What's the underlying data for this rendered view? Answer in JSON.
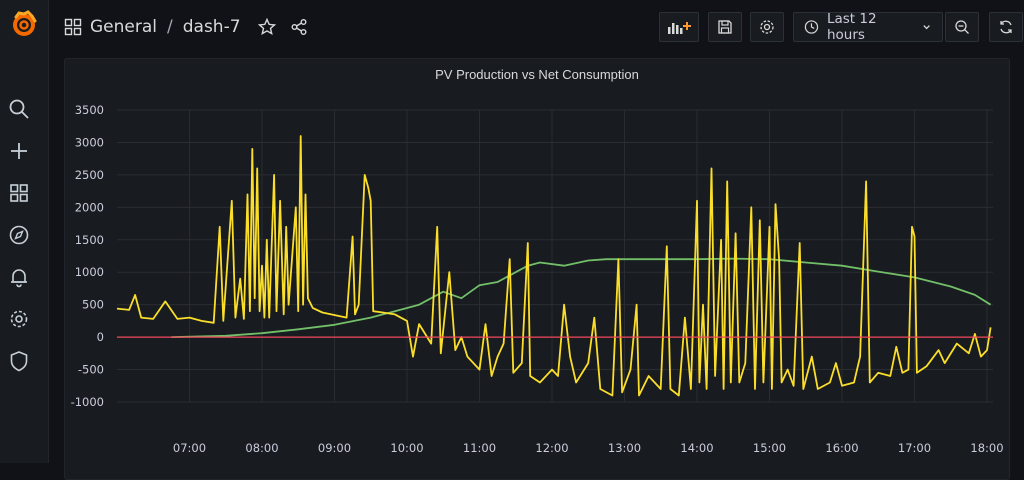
{
  "breadcrumb": {
    "folder": "General",
    "separator": "/",
    "dashboard": "dash-7"
  },
  "time_picker": {
    "label": "Last 12 hours"
  },
  "sidebar": {
    "icons": [
      "grafana-logo-icon",
      "search-icon",
      "plus-icon",
      "dashboards-icon",
      "explore-icon",
      "alerting-icon",
      "configuration-icon",
      "shield-icon"
    ]
  },
  "toolbar": {
    "icons": [
      "add-panel-icon",
      "save-icon",
      "settings-icon",
      "clock-icon",
      "chevron-down-icon",
      "zoom-out-icon",
      "refresh-icon"
    ]
  },
  "colors": {
    "production": "#73bf69",
    "consumption": "#fade2a",
    "zero_line": "#f2495c",
    "background": "#111217"
  },
  "panel": {
    "title": "PV Production vs Net Consumption"
  },
  "chart_data": {
    "type": "line",
    "title": "PV Production vs Net Consumption",
    "x_ticks": [
      "07:00",
      "08:00",
      "09:00",
      "10:00",
      "11:00",
      "12:00",
      "13:00",
      "14:00",
      "15:00",
      "16:00",
      "17:00",
      "18:00"
    ],
    "y_ticks": [
      "3500",
      "3000",
      "2500",
      "2000",
      "1500",
      "1000",
      "500",
      "0",
      "-500",
      "-1000"
    ],
    "ylim": [
      -1000,
      3500
    ],
    "xlim": [
      "06:00",
      "18:05"
    ],
    "grid": true,
    "series": [
      {
        "color": "#73bf69",
        "points": [
          [
            "06:45",
            0
          ],
          [
            "07:30",
            20
          ],
          [
            "08:00",
            60
          ],
          [
            "08:30",
            120
          ],
          [
            "09:00",
            190
          ],
          [
            "09:30",
            300
          ],
          [
            "09:50",
            400
          ],
          [
            "10:10",
            500
          ],
          [
            "10:30",
            700
          ],
          [
            "10:45",
            600
          ],
          [
            "11:00",
            800
          ],
          [
            "11:15",
            850
          ],
          [
            "11:30",
            1000
          ],
          [
            "11:40",
            1100
          ],
          [
            "11:50",
            1150
          ],
          [
            "12:10",
            1100
          ],
          [
            "12:30",
            1180
          ],
          [
            "12:45",
            1200
          ],
          [
            "13:30",
            1200
          ],
          [
            "14:00",
            1200
          ],
          [
            "14:30",
            1210
          ],
          [
            "15:00",
            1200
          ],
          [
            "15:30",
            1150
          ],
          [
            "16:00",
            1100
          ],
          [
            "16:30",
            1010
          ],
          [
            "17:00",
            920
          ],
          [
            "17:30",
            780
          ],
          [
            "17:50",
            650
          ],
          [
            "18:03",
            500
          ]
        ]
      },
      {
        "color": "#fade2a",
        "points": [
          [
            "06:00",
            440
          ],
          [
            "06:10",
            420
          ],
          [
            "06:15",
            650
          ],
          [
            "06:20",
            300
          ],
          [
            "06:30",
            280
          ],
          [
            "06:40",
            550
          ],
          [
            "06:50",
            280
          ],
          [
            "07:00",
            300
          ],
          [
            "07:10",
            250
          ],
          [
            "07:20",
            220
          ],
          [
            "07:25",
            1700
          ],
          [
            "07:28",
            250
          ],
          [
            "07:35",
            2100
          ],
          [
            "07:38",
            300
          ],
          [
            "07:42",
            900
          ],
          [
            "07:45",
            280
          ],
          [
            "07:48",
            2200
          ],
          [
            "07:50",
            400
          ],
          [
            "07:52",
            2900
          ],
          [
            "07:54",
            600
          ],
          [
            "07:56",
            2600
          ],
          [
            "07:58",
            400
          ],
          [
            "08:00",
            1100
          ],
          [
            "08:02",
            300
          ],
          [
            "08:04",
            1500
          ],
          [
            "08:06",
            300
          ],
          [
            "08:10",
            2500
          ],
          [
            "08:12",
            400
          ],
          [
            "08:15",
            2100
          ],
          [
            "08:18",
            350
          ],
          [
            "08:20",
            1700
          ],
          [
            "08:22",
            500
          ],
          [
            "08:28",
            2000
          ],
          [
            "08:30",
            400
          ],
          [
            "08:32",
            3100
          ],
          [
            "08:34",
            500
          ],
          [
            "08:36",
            2200
          ],
          [
            "08:38",
            600
          ],
          [
            "08:42",
            450
          ],
          [
            "08:50",
            380
          ],
          [
            "09:10",
            300
          ],
          [
            "09:15",
            1550
          ],
          [
            "09:17",
            350
          ],
          [
            "09:20",
            500
          ],
          [
            "09:25",
            2500
          ],
          [
            "09:28",
            2300
          ],
          [
            "09:30",
            2100
          ],
          [
            "09:32",
            400
          ],
          [
            "09:40",
            380
          ],
          [
            "09:50",
            350
          ],
          [
            "10:00",
            250
          ],
          [
            "10:05",
            -300
          ],
          [
            "10:10",
            200
          ],
          [
            "10:20",
            -100
          ],
          [
            "10:25",
            1700
          ],
          [
            "10:28",
            -250
          ],
          [
            "10:35",
            1000
          ],
          [
            "10:40",
            -200
          ],
          [
            "10:45",
            0
          ],
          [
            "10:50",
            -300
          ],
          [
            "11:00",
            -500
          ],
          [
            "11:05",
            200
          ],
          [
            "11:10",
            -600
          ],
          [
            "11:15",
            -300
          ],
          [
            "11:20",
            -100
          ],
          [
            "11:25",
            1200
          ],
          [
            "11:28",
            -550
          ],
          [
            "11:35",
            -400
          ],
          [
            "11:40",
            1450
          ],
          [
            "11:42",
            -600
          ],
          [
            "11:50",
            -700
          ],
          [
            "12:00",
            -500
          ],
          [
            "12:05",
            -600
          ],
          [
            "12:10",
            500
          ],
          [
            "12:15",
            -300
          ],
          [
            "12:20",
            -700
          ],
          [
            "12:30",
            -400
          ],
          [
            "12:35",
            300
          ],
          [
            "12:40",
            -800
          ],
          [
            "12:50",
            -900
          ],
          [
            "12:55",
            1200
          ],
          [
            "12:58",
            -850
          ],
          [
            "13:05",
            -500
          ],
          [
            "13:10",
            500
          ],
          [
            "13:12",
            -900
          ],
          [
            "13:20",
            -600
          ],
          [
            "13:30",
            -800
          ],
          [
            "13:35",
            1400
          ],
          [
            "13:38",
            -800
          ],
          [
            "13:45",
            -900
          ],
          [
            "13:50",
            300
          ],
          [
            "13:55",
            -800
          ],
          [
            "14:00",
            2100
          ],
          [
            "14:02",
            -700
          ],
          [
            "14:05",
            500
          ],
          [
            "14:08",
            -800
          ],
          [
            "14:12",
            2600
          ],
          [
            "14:15",
            -600
          ],
          [
            "14:20",
            1500
          ],
          [
            "14:22",
            -800
          ],
          [
            "14:25",
            2400
          ],
          [
            "14:28",
            -700
          ],
          [
            "14:32",
            1600
          ],
          [
            "14:35",
            -700
          ],
          [
            "14:40",
            -400
          ],
          [
            "14:45",
            2000
          ],
          [
            "14:48",
            -800
          ],
          [
            "14:52",
            1800
          ],
          [
            "14:55",
            -700
          ],
          [
            "15:00",
            1700
          ],
          [
            "15:02",
            -800
          ],
          [
            "15:05",
            2050
          ],
          [
            "15:08",
            1200
          ],
          [
            "15:10",
            -700
          ],
          [
            "15:15",
            -500
          ],
          [
            "15:20",
            -750
          ],
          [
            "15:25",
            1450
          ],
          [
            "15:28",
            -800
          ],
          [
            "15:35",
            -300
          ],
          [
            "15:40",
            -800
          ],
          [
            "15:50",
            -700
          ],
          [
            "15:55",
            -400
          ],
          [
            "16:00",
            -750
          ],
          [
            "16:10",
            -700
          ],
          [
            "16:15",
            -300
          ],
          [
            "16:20",
            2400
          ],
          [
            "16:23",
            -700
          ],
          [
            "16:30",
            -550
          ],
          [
            "16:40",
            -600
          ],
          [
            "16:45",
            -150
          ],
          [
            "16:50",
            -550
          ],
          [
            "16:55",
            -500
          ],
          [
            "16:58",
            1700
          ],
          [
            "17:00",
            1550
          ],
          [
            "17:02",
            -550
          ],
          [
            "17:10",
            -450
          ],
          [
            "17:20",
            -200
          ],
          [
            "17:25",
            -400
          ],
          [
            "17:35",
            -100
          ],
          [
            "17:45",
            -250
          ],
          [
            "17:50",
            50
          ],
          [
            "17:55",
            -300
          ],
          [
            "18:00",
            -200
          ],
          [
            "18:03",
            150
          ]
        ]
      },
      {
        "color": "#f2495c",
        "points": [
          [
            "06:00",
            0
          ],
          [
            "18:05",
            0
          ]
        ]
      }
    ]
  }
}
